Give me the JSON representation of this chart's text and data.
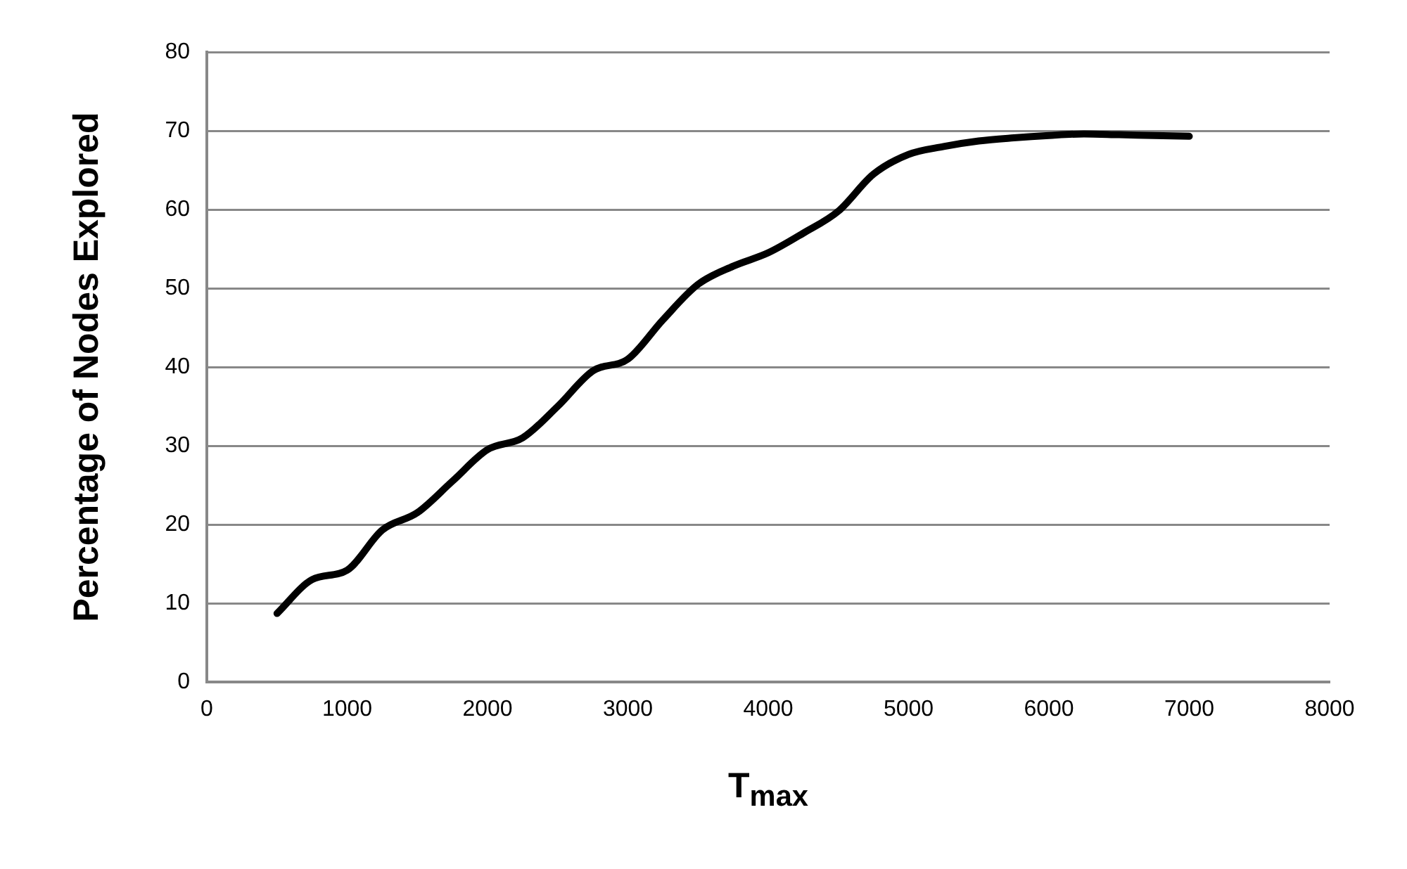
{
  "chart_data": {
    "type": "line",
    "xlabel": "T$_{max}$",
    "ylabel": "Percentage of Nodes Explored",
    "xlim": [
      0,
      8000
    ],
    "xticks": [
      0,
      1000,
      2000,
      3000,
      4000,
      5000,
      6000,
      7000,
      8000
    ],
    "ylim": [
      0,
      80
    ],
    "yticks": [
      0,
      10,
      20,
      30,
      40,
      50,
      60,
      70,
      80
    ],
    "grid": "y",
    "legend": false,
    "marker": "none",
    "line_style": "solid",
    "series": [
      {
        "color": "#000000",
        "x": [
          500,
          750,
          1000,
          1250,
          1500,
          1750,
          2000,
          2250,
          2500,
          2750,
          3000,
          3250,
          3500,
          3750,
          4000,
          4250,
          4500,
          4750,
          5000,
          5250,
          5500,
          5750,
          6000,
          6250,
          6500,
          6750,
          7000
        ],
        "values": [
          8.7,
          13,
          14.2,
          19.3,
          21.5,
          25.5,
          29.5,
          31,
          35,
          39.5,
          41,
          46,
          50.5,
          52.8,
          54.5,
          57,
          59.8,
          64.5,
          67,
          68,
          68.7,
          69.1,
          69.4,
          69.6,
          69.5,
          69.4,
          69.3
        ]
      }
    ]
  }
}
